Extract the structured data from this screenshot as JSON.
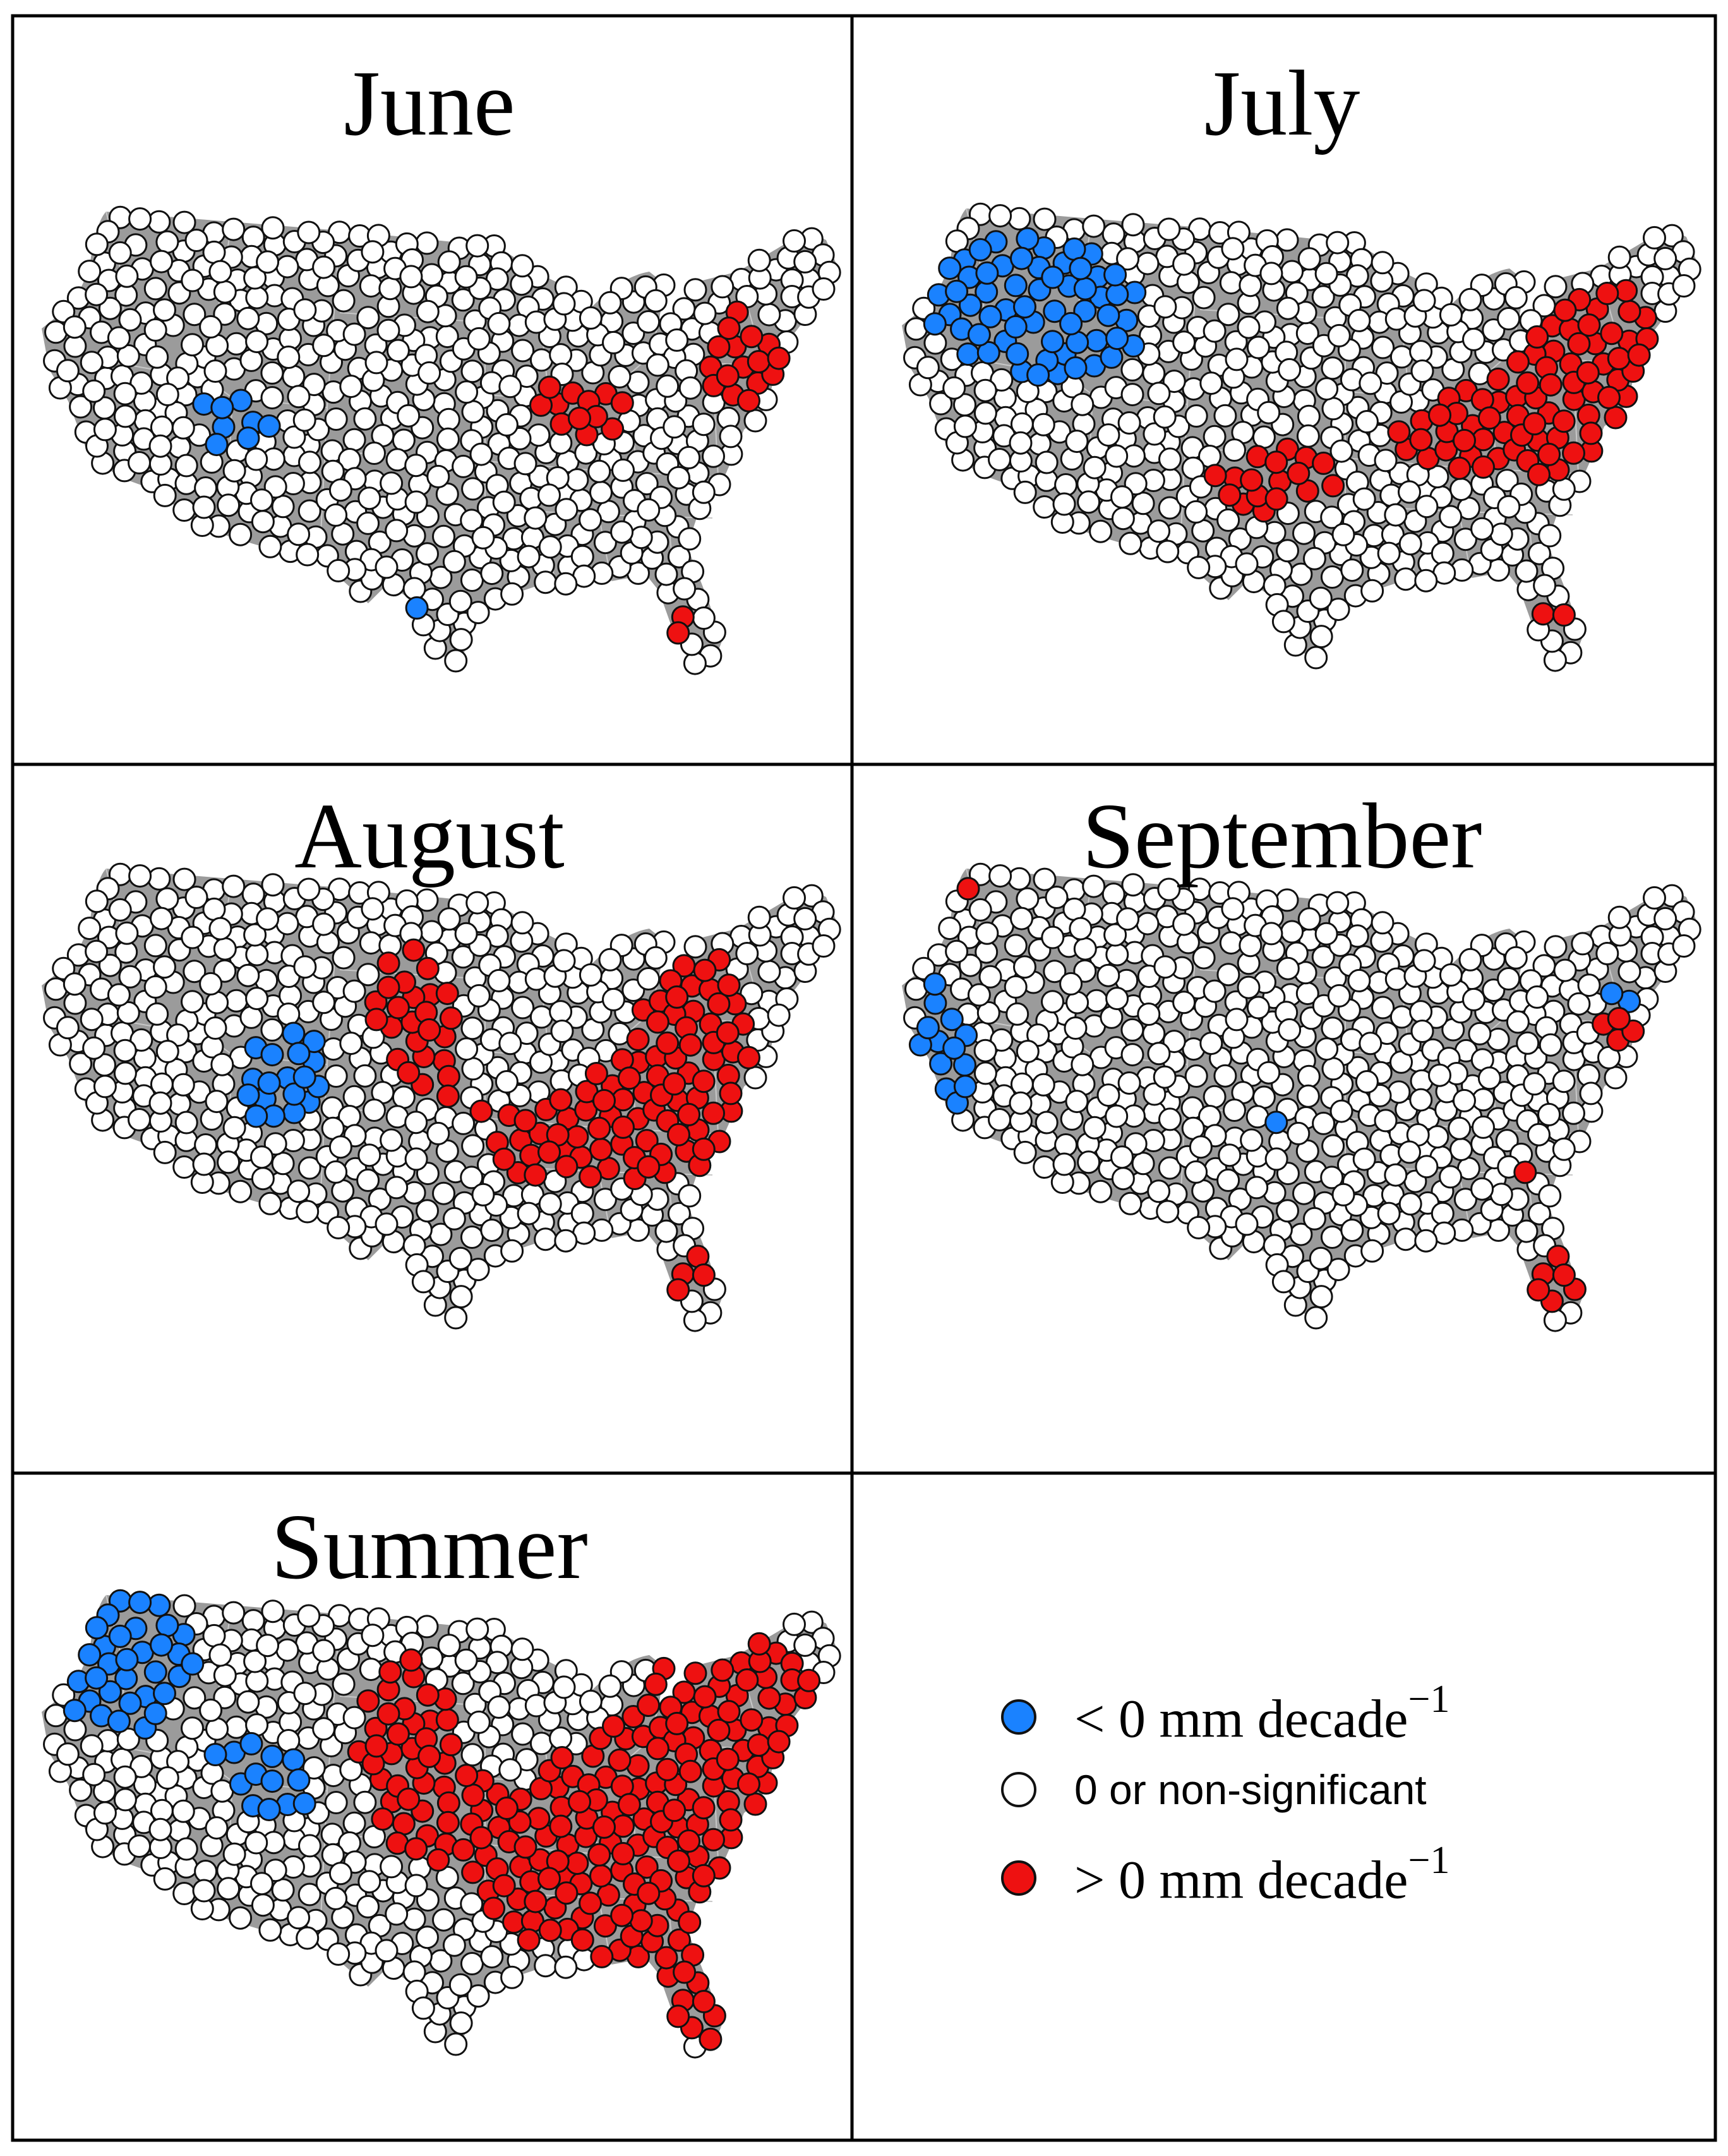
{
  "colors": {
    "negative": "#1a82ff",
    "neutral": "#ffffff",
    "positive": "#ee1111",
    "land": "#9b9b9b",
    "state_lines": "#c8c8c8",
    "frame": "#000000"
  },
  "panels": [
    {
      "id": "june",
      "title": "June",
      "negative_sites": 9,
      "positive_sites": 30
    },
    {
      "id": "july",
      "title": "July",
      "negative_sites": 60,
      "positive_sites": 95
    },
    {
      "id": "august",
      "title": "August",
      "negative_sites": 18,
      "positive_sites": 120
    },
    {
      "id": "september",
      "title": "September",
      "negative_sites": 16,
      "positive_sites": 12
    },
    {
      "id": "summer",
      "title": "Summer",
      "negative_sites": 45,
      "positive_sites": 220
    }
  ],
  "legend": {
    "items": [
      {
        "key": "negative",
        "label": "< 0 mm decade",
        "exponent": "−1",
        "style": "serif"
      },
      {
        "key": "neutral",
        "label": "0 or non-significant",
        "exponent": "",
        "style": "sans"
      },
      {
        "key": "positive",
        "label": "> 0 mm decade",
        "exponent": "−1",
        "style": "serif"
      }
    ]
  }
}
